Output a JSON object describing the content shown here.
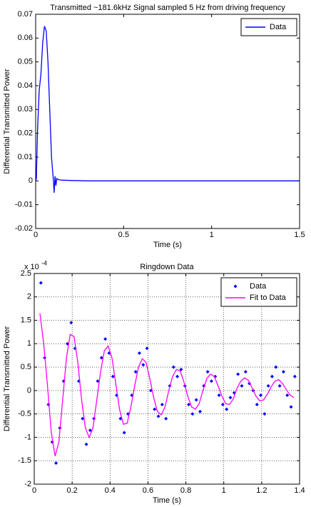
{
  "chart_data": [
    {
      "type": "line",
      "title": "Transmitted ~181.6kHz Signal sampled 5 Hz from driving frequency",
      "x_label": "Time (s)",
      "y_label": "Differential Transmitted Power",
      "xlim": [
        0,
        1.5
      ],
      "xticks": [
        0,
        0.5,
        1,
        1.5
      ],
      "ylim": [
        -0.02,
        0.07
      ],
      "yticks": [
        -0.02,
        -0.01,
        0,
        0.01,
        0.02,
        0.03,
        0.04,
        0.05,
        0.06,
        0.07
      ],
      "grid": false,
      "legend": "upper right",
      "series": [
        {
          "name": "Data",
          "color": "#0000ff",
          "mode": "lines",
          "x": [
            0,
            0.004,
            0.01,
            0.02,
            0.03,
            0.04,
            0.05,
            0.06,
            0.07,
            0.08,
            0.09,
            0.1,
            0.105,
            0.11,
            0.115,
            0.12,
            0.13,
            0.15,
            0.2,
            0.3,
            0.5,
            0.7,
            0.9,
            1.1,
            1.3,
            1.5
          ],
          "values": [
            0,
            0.001,
            0.02,
            0.038,
            0.045,
            0.058,
            0.065,
            0.063,
            0.05,
            0.03,
            0.01,
            0.001,
            -0.005,
            0.002,
            -0.002,
            0.001,
            0.0005,
            0.0003,
            0.0002,
            0,
            0,
            0,
            0,
            0,
            0,
            0
          ]
        }
      ]
    },
    {
      "type": "scatter",
      "title": "Ringdown Data",
      "x_label": "Time (s)",
      "y_label": "Differential Transmitted Power",
      "y_scale_base": "x 10",
      "y_scale_exponent": "-4",
      "xlim": [
        0,
        1.4
      ],
      "xticks": [
        0,
        0.2,
        0.4,
        0.6,
        0.8,
        1,
        1.2,
        1.4
      ],
      "ylim": [
        -2,
        2.5
      ],
      "yticks": [
        -2,
        -1.5,
        -1,
        -0.5,
        0,
        0.5,
        1,
        1.5,
        2,
        2.5
      ],
      "grid": true,
      "legend": "upper right",
      "series": [
        {
          "name": "Data",
          "color": "#0000ff",
          "mode": "markers",
          "x": [
            0.035,
            0.055,
            0.075,
            0.095,
            0.115,
            0.135,
            0.155,
            0.175,
            0.195,
            0.215,
            0.235,
            0.255,
            0.275,
            0.295,
            0.315,
            0.335,
            0.355,
            0.375,
            0.395,
            0.415,
            0.435,
            0.455,
            0.475,
            0.495,
            0.515,
            0.535,
            0.555,
            0.575,
            0.595,
            0.615,
            0.635,
            0.655,
            0.675,
            0.695,
            0.715,
            0.735,
            0.755,
            0.775,
            0.795,
            0.815,
            0.835,
            0.855,
            0.875,
            0.895,
            0.915,
            0.935,
            0.955,
            0.975,
            0.995,
            1.015,
            1.035,
            1.055,
            1.075,
            1.095,
            1.115,
            1.135,
            1.155,
            1.175,
            1.195,
            1.215,
            1.235,
            1.255,
            1.275,
            1.295,
            1.315,
            1.335,
            1.355,
            1.375
          ],
          "values": [
            2.3,
            0.7,
            -0.3,
            -1.1,
            -1.55,
            -0.8,
            0.2,
            1.0,
            1.45,
            0.9,
            0.2,
            -0.6,
            -1.15,
            -0.85,
            -0.6,
            0.2,
            0.7,
            1.1,
            0.8,
            0.3,
            -0.1,
            -0.6,
            -0.9,
            -0.5,
            -0.1,
            0.4,
            0.8,
            0.55,
            0.9,
            0.0,
            -0.4,
            -0.55,
            -0.3,
            -0.6,
            0.1,
            0.5,
            0.3,
            0.45,
            0.1,
            -0.3,
            -0.5,
            -0.2,
            -0.45,
            0.1,
            0.4,
            0.2,
            0.3,
            -0.1,
            -0.3,
            -0.4,
            -0.15,
            -0.05,
            0.35,
            0.1,
            0.4,
            0.15,
            0.0,
            -0.3,
            -0.1,
            -0.5,
            0.1,
            0.3,
            0.5,
            0.1,
            0.4,
            -0.1,
            -0.35,
            0.3
          ]
        },
        {
          "name": "Fit to Data",
          "color": "#ff00ff",
          "mode": "lines",
          "x": [
            0.03,
            0.05,
            0.07,
            0.09,
            0.11,
            0.13,
            0.15,
            0.17,
            0.19,
            0.21,
            0.23,
            0.25,
            0.27,
            0.29,
            0.31,
            0.33,
            0.35,
            0.37,
            0.39,
            0.41,
            0.43,
            0.45,
            0.47,
            0.49,
            0.51,
            0.53,
            0.55,
            0.57,
            0.59,
            0.61,
            0.63,
            0.65,
            0.67,
            0.69,
            0.71,
            0.73,
            0.75,
            0.77,
            0.79,
            0.81,
            0.83,
            0.85,
            0.87,
            0.89,
            0.91,
            0.93,
            0.95,
            0.97,
            0.99,
            1.01,
            1.03,
            1.05,
            1.07,
            1.09,
            1.11,
            1.13,
            1.15,
            1.17,
            1.19,
            1.21,
            1.23,
            1.25,
            1.27,
            1.29,
            1.31,
            1.33,
            1.35,
            1.37
          ],
          "values": [
            1.65,
            1.0,
            0.1,
            -0.9,
            -1.4,
            -1.1,
            -0.2,
            0.7,
            1.2,
            1.15,
            0.6,
            -0.2,
            -0.8,
            -1.0,
            -0.8,
            -0.2,
            0.4,
            0.85,
            0.95,
            0.7,
            0.15,
            -0.4,
            -0.72,
            -0.7,
            -0.35,
            0.1,
            0.5,
            0.68,
            0.6,
            0.25,
            -0.15,
            -0.45,
            -0.52,
            -0.35,
            0,
            0.3,
            0.45,
            0.42,
            0.18,
            -0.12,
            -0.35,
            -0.4,
            -0.28,
            0,
            0.25,
            0.35,
            0.3,
            0.1,
            -0.12,
            -0.28,
            -0.3,
            -0.18,
            0.05,
            0.2,
            0.27,
            0.22,
            0.05,
            -0.12,
            -0.22,
            -0.2,
            -0.08,
            0.08,
            0.2,
            0.23,
            0.15,
            0.02,
            -0.1,
            -0.15
          ]
        }
      ]
    }
  ]
}
